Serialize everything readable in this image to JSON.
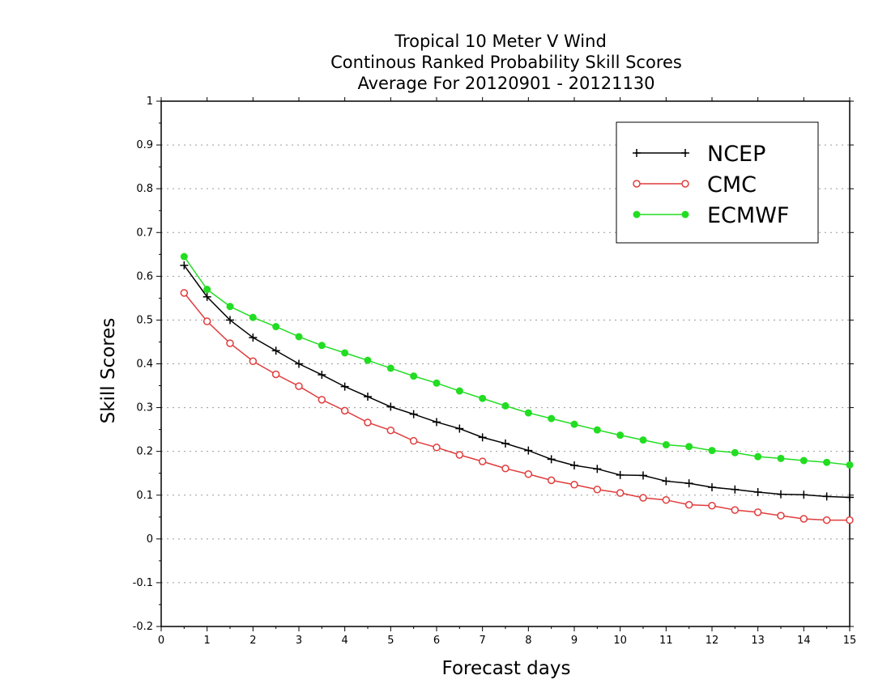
{
  "chart_data": {
    "type": "line",
    "title": [
      "Tropical 10 Meter V Wind",
      "Continous Ranked Probability Skill Scores",
      "Average For 20120901 - 20121130"
    ],
    "xlabel": "Forecast days",
    "ylabel": "Skill Scores",
    "xlim": [
      0,
      15
    ],
    "ylim": [
      -0.2,
      1
    ],
    "xticks": [
      "0",
      "1",
      "2",
      "3",
      "4",
      "5",
      "6",
      "7",
      "8",
      "9",
      "10",
      "11",
      "12",
      "13",
      "14",
      "15"
    ],
    "yticks": [
      "-0.2",
      "-0.1",
      "0",
      "0.1",
      "0.2",
      "0.3",
      "0.4",
      "0.5",
      "0.6",
      "0.7",
      "0.8",
      "0.9",
      "1"
    ],
    "grid": "horizontal-dotted",
    "legend_position": "top-right",
    "x": [
      0.5,
      1,
      1.5,
      2,
      2.5,
      3,
      3.5,
      4,
      4.5,
      5,
      5.5,
      6,
      6.5,
      7,
      7.5,
      8,
      8.5,
      9,
      9.5,
      10,
      10.5,
      11,
      11.5,
      12,
      12.5,
      13,
      13.5,
      14,
      14.5,
      15
    ],
    "series": [
      {
        "name": "NCEP",
        "color": "#000000",
        "marker": "plus",
        "values": [
          0.625,
          0.553,
          0.5,
          0.46,
          0.43,
          0.4,
          0.375,
          0.348,
          0.325,
          0.302,
          0.285,
          0.267,
          0.252,
          0.232,
          0.218,
          0.202,
          0.182,
          0.168,
          0.16,
          0.146,
          0.145,
          0.132,
          0.127,
          0.118,
          0.113,
          0.107,
          0.102,
          0.101,
          0.097,
          0.095
        ]
      },
      {
        "name": "CMC",
        "color": "#e03c3c",
        "marker": "open-circle",
        "values": [
          0.562,
          0.497,
          0.447,
          0.406,
          0.376,
          0.349,
          0.318,
          0.293,
          0.266,
          0.248,
          0.224,
          0.209,
          0.192,
          0.177,
          0.161,
          0.148,
          0.134,
          0.124,
          0.113,
          0.105,
          0.094,
          0.089,
          0.078,
          0.076,
          0.066,
          0.061,
          0.053,
          0.046,
          0.043,
          0.043
        ]
      },
      {
        "name": "ECMWF",
        "color": "#22dd22",
        "marker": "filled-circle",
        "values": [
          0.645,
          0.57,
          0.531,
          0.506,
          0.485,
          0.462,
          0.442,
          0.425,
          0.408,
          0.39,
          0.372,
          0.356,
          0.338,
          0.321,
          0.304,
          0.288,
          0.275,
          0.262,
          0.249,
          0.237,
          0.226,
          0.215,
          0.211,
          0.202,
          0.197,
          0.188,
          0.184,
          0.179,
          0.175,
          0.169
        ]
      }
    ]
  }
}
